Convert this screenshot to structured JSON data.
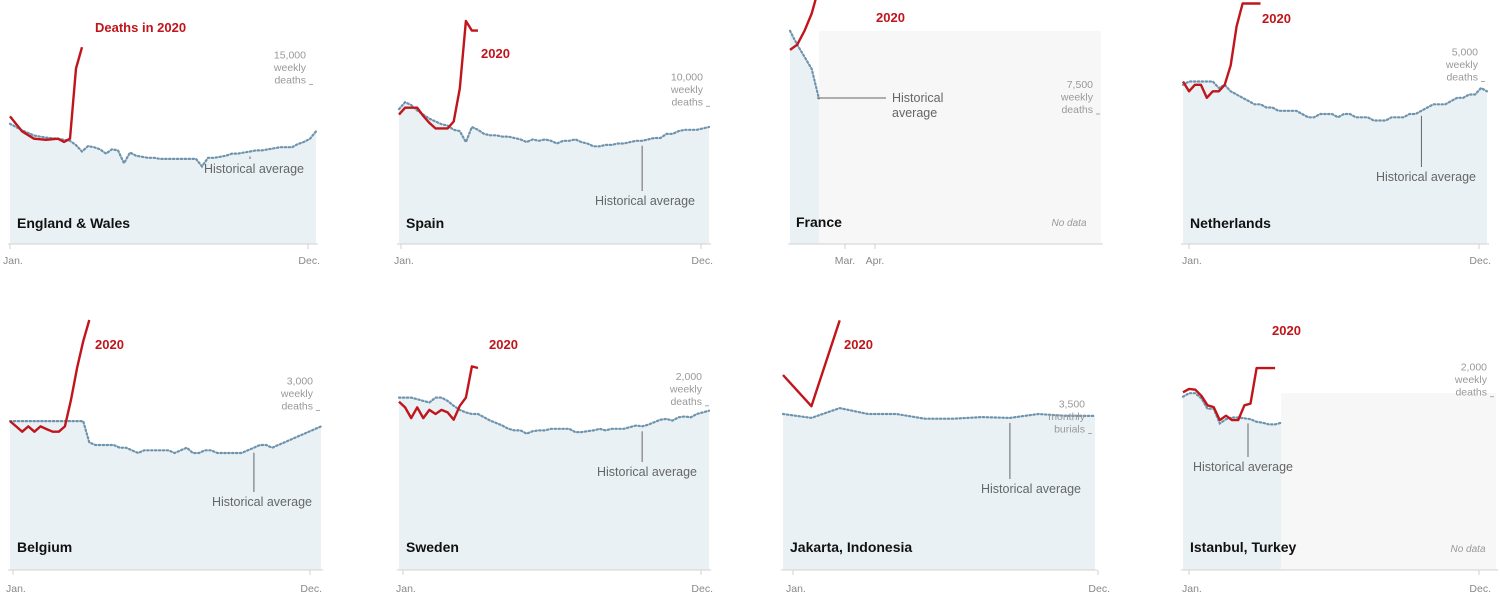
{
  "colors": {
    "deaths_2020": "#c0151b",
    "historical_average": "#6e93ad",
    "area_fill": "#e9f1f5",
    "no_data_fill": "#f7f7f7",
    "axis": "#d2d2d2",
    "annotation_line": "#666666"
  },
  "chart_data": [
    {
      "type": "line",
      "title": "England & Wales",
      "x_labels": [
        "Jan.",
        "Dec."
      ],
      "x_domain": [
        1,
        52
      ],
      "y_domain": [
        0,
        22000
      ],
      "scale_label": [
        "15,000",
        "weekly",
        "deaths"
      ],
      "scale_value": 15000,
      "series_label": "Deaths in 2020",
      "annotation": "Historical average",
      "annotation_week": 41,
      "series": [
        {
          "name": "Deaths in 2020",
          "x": [
            1,
            3,
            5,
            7,
            9,
            10,
            11,
            12,
            13
          ],
          "y": [
            12000,
            10600,
            9900,
            9800,
            9900,
            9600,
            9900,
            16500,
            18500
          ]
        },
        {
          "name": "Historical average",
          "x": [
            1,
            3,
            5,
            7,
            9,
            11,
            12,
            13,
            14,
            15,
            16,
            17,
            18,
            19,
            20,
            21,
            22,
            23,
            24,
            25,
            26,
            27,
            28,
            29,
            30,
            31,
            32,
            33,
            34,
            35,
            36,
            37,
            38,
            39,
            40,
            41,
            42,
            43,
            44,
            45,
            46,
            47,
            48,
            49,
            50,
            51,
            52
          ],
          "y": [
            11300,
            10700,
            10200,
            10000,
            9900,
            9700,
            9300,
            8700,
            9200,
            9100,
            8900,
            8500,
            8900,
            8800,
            7600,
            8600,
            8300,
            8200,
            8100,
            8100,
            8000,
            8000,
            8000,
            8000,
            8000,
            8000,
            8000,
            7300,
            8100,
            8100,
            8200,
            8300,
            8500,
            8500,
            8600,
            8700,
            8800,
            8800,
            8900,
            9000,
            9100,
            9100,
            9100,
            9400,
            9600,
            9900,
            10600
          ]
        }
      ]
    },
    {
      "type": "line",
      "title": "Spain",
      "x_labels": [
        "Jan.",
        "Dec."
      ],
      "x_domain": [
        1,
        52
      ],
      "y_domain": [
        0,
        17000
      ],
      "scale_label": [
        "10,000",
        "weekly",
        "deaths"
      ],
      "scale_value": 10000,
      "series_label": "2020",
      "annotation": "Historical average",
      "annotation_week": 41,
      "series": [
        {
          "name": "2020",
          "x": [
            1,
            2,
            3,
            4,
            5,
            6,
            7,
            8,
            9,
            10,
            11,
            12,
            13,
            14
          ],
          "y": [
            9400,
            9900,
            9900,
            9900,
            9300,
            8800,
            8400,
            8400,
            8400,
            8900,
            11300,
            16200,
            15500,
            15500
          ]
        },
        {
          "name": "Historical average",
          "x": [
            1,
            2,
            3,
            4,
            5,
            6,
            7,
            8,
            9,
            10,
            11,
            12,
            13,
            14,
            15,
            16,
            17,
            18,
            19,
            20,
            21,
            22,
            23,
            24,
            25,
            26,
            27,
            28,
            29,
            30,
            31,
            32,
            33,
            34,
            35,
            36,
            37,
            38,
            39,
            40,
            41,
            42,
            43,
            44,
            45,
            46,
            47,
            48,
            49,
            50,
            51,
            52
          ],
          "y": [
            9800,
            10300,
            10100,
            9700,
            9400,
            9100,
            8900,
            8700,
            8600,
            8300,
            8200,
            7400,
            8500,
            8300,
            8000,
            7900,
            7900,
            7800,
            7800,
            7700,
            7600,
            7400,
            7600,
            7500,
            7600,
            7500,
            7300,
            7500,
            7500,
            7600,
            7400,
            7300,
            7100,
            7100,
            7200,
            7200,
            7300,
            7300,
            7400,
            7500,
            7500,
            7600,
            7700,
            7700,
            8000,
            8000,
            8200,
            8300,
            8300,
            8300,
            8400,
            8500
          ]
        }
      ]
    },
    {
      "type": "line",
      "title": "France",
      "x_labels": [
        "Mar.",
        "Apr."
      ],
      "x_domain": [
        10,
        53
      ],
      "y_domain": [
        0,
        13500
      ],
      "scale_label": [
        "7,500",
        "weekly",
        "deaths"
      ],
      "scale_value": 7500,
      "series_label": "2020",
      "annotation": "Historical average",
      "annotation_week": 14,
      "no_data": "No data",
      "data_weeks": [
        10,
        14
      ],
      "series": [
        {
          "name": "2020",
          "x": [
            10,
            11,
            12,
            13,
            14
          ],
          "y": [
            11200,
            11500,
            12300,
            13300,
            14800
          ]
        },
        {
          "name": "Historical average",
          "x": [
            10,
            11,
            12,
            13,
            14
          ],
          "y": [
            12300,
            11500,
            10800,
            10100,
            8400
          ]
        }
      ]
    },
    {
      "type": "line",
      "title": "Netherlands",
      "x_labels": [
        "Jan.",
        "Dec."
      ],
      "x_domain": [
        1,
        52
      ],
      "y_domain": [
        0,
        7200
      ],
      "scale_label": [
        "5,000",
        "weekly",
        "deaths"
      ],
      "scale_value": 5000,
      "series_label": "2020",
      "annotation": "Historical average",
      "annotation_week": 41,
      "series": [
        {
          "name": "2020",
          "x": [
            1,
            2,
            3,
            4,
            5,
            6,
            7,
            8,
            9,
            10,
            11,
            12,
            13,
            14
          ],
          "y": [
            5000,
            4700,
            4900,
            4900,
            4500,
            4700,
            4700,
            4900,
            5500,
            6700,
            7400,
            7400,
            7400,
            7400
          ]
        },
        {
          "name": "Historical average",
          "x": [
            1,
            2,
            3,
            4,
            5,
            6,
            7,
            8,
            9,
            10,
            11,
            12,
            13,
            14,
            15,
            16,
            17,
            18,
            19,
            20,
            21,
            22,
            23,
            24,
            25,
            26,
            27,
            28,
            29,
            30,
            31,
            32,
            33,
            34,
            35,
            36,
            37,
            38,
            39,
            40,
            41,
            42,
            43,
            44,
            45,
            46,
            47,
            48,
            49,
            50,
            51,
            52
          ],
          "y": [
            4900,
            5000,
            5000,
            5000,
            5000,
            5000,
            4800,
            4900,
            4700,
            4600,
            4500,
            4400,
            4300,
            4300,
            4200,
            4200,
            4100,
            4100,
            4100,
            4100,
            4000,
            3900,
            3900,
            4000,
            4000,
            4000,
            3900,
            4000,
            4000,
            3900,
            3900,
            3900,
            3800,
            3800,
            3800,
            3900,
            3900,
            3900,
            4000,
            4000,
            4100,
            4200,
            4300,
            4300,
            4300,
            4400,
            4500,
            4500,
            4600,
            4600,
            4800,
            4700
          ]
        }
      ]
    },
    {
      "type": "line",
      "title": "Belgium",
      "x_labels": [
        "Jan.",
        "Dec."
      ],
      "x_domain": [
        1,
        52
      ],
      "y_domain": [
        0,
        4400
      ],
      "scale_label": [
        "3,000",
        "weekly",
        "deaths"
      ],
      "scale_value": 3000,
      "series_label": "2020",
      "annotation": "Historical average",
      "annotation_week": 41,
      "series": [
        {
          "name": "2020",
          "x": [
            1,
            2,
            3,
            4,
            5,
            6,
            7,
            8,
            9,
            10,
            11,
            12,
            13,
            14
          ],
          "y": [
            2800,
            2700,
            2600,
            2700,
            2600,
            2700,
            2650,
            2600,
            2600,
            2700,
            3200,
            3800,
            4300,
            4700
          ]
        },
        {
          "name": "Historical average",
          "x": [
            1,
            2,
            3,
            4,
            5,
            6,
            7,
            8,
            9,
            10,
            11,
            12,
            13,
            14,
            15,
            16,
            17,
            18,
            19,
            20,
            21,
            22,
            23,
            24,
            25,
            26,
            27,
            28,
            29,
            30,
            31,
            32,
            33,
            34,
            35,
            36,
            37,
            38,
            39,
            40,
            41,
            42,
            43,
            44,
            45,
            46,
            47,
            48,
            49,
            50,
            51,
            52
          ],
          "y": [
            2800,
            2800,
            2800,
            2800,
            2800,
            2800,
            2800,
            2800,
            2800,
            2800,
            2800,
            2800,
            2800,
            2400,
            2350,
            2350,
            2350,
            2350,
            2300,
            2300,
            2250,
            2200,
            2250,
            2250,
            2250,
            2250,
            2250,
            2200,
            2250,
            2300,
            2200,
            2200,
            2250,
            2250,
            2200,
            2200,
            2200,
            2200,
            2200,
            2250,
            2300,
            2350,
            2350,
            2300,
            2350,
            2400,
            2450,
            2500,
            2550,
            2600,
            2650,
            2700
          ]
        }
      ]
    },
    {
      "type": "line",
      "title": "Sweden",
      "x_labels": [
        "Jan.",
        "Dec."
      ],
      "x_domain": [
        1,
        52
      ],
      "y_domain": [
        0,
        2850
      ],
      "scale_label": [
        "2,000",
        "weekly",
        "deaths"
      ],
      "scale_value": 2000,
      "series_label": "2020",
      "annotation": "Historical average",
      "annotation_week": 41,
      "series": [
        {
          "name": "2020",
          "x": [
            1,
            2,
            3,
            4,
            5,
            6,
            7,
            8,
            9,
            10,
            11,
            12,
            13,
            14
          ],
          "y": [
            2050,
            1980,
            1850,
            1980,
            1850,
            1950,
            1900,
            1950,
            1920,
            1830,
            2000,
            2100,
            2480,
            2460
          ]
        },
        {
          "name": "Historical average",
          "x": [
            1,
            2,
            3,
            4,
            5,
            6,
            7,
            8,
            9,
            10,
            11,
            12,
            13,
            14,
            15,
            16,
            17,
            18,
            19,
            20,
            21,
            22,
            23,
            24,
            25,
            26,
            27,
            28,
            29,
            30,
            31,
            32,
            33,
            34,
            35,
            36,
            37,
            38,
            39,
            40,
            41,
            42,
            43,
            44,
            45,
            46,
            47,
            48,
            49,
            50,
            51,
            52
          ],
          "y": [
            2100,
            2100,
            2100,
            2080,
            2060,
            2040,
            2100,
            2100,
            2060,
            2000,
            1950,
            1920,
            1900,
            1900,
            1860,
            1820,
            1790,
            1760,
            1720,
            1700,
            1700,
            1660,
            1690,
            1700,
            1700,
            1720,
            1720,
            1720,
            1720,
            1680,
            1680,
            1690,
            1700,
            1720,
            1700,
            1720,
            1720,
            1720,
            1740,
            1760,
            1750,
            1770,
            1800,
            1830,
            1840,
            1820,
            1860,
            1870,
            1860,
            1900,
            1920,
            1940
          ]
        }
      ]
    },
    {
      "type": "line",
      "title": "Jakarta, Indonesia",
      "x_labels": [
        "Jan.",
        "Dec."
      ],
      "x_domain": [
        1,
        12
      ],
      "y_domain": [
        0,
        6000
      ],
      "scale_label": [
        "3,500",
        "monthly",
        "burials"
      ],
      "scale_value": 3500,
      "series_label": "2020",
      "annotation": "Historical average",
      "annotation_month": 9,
      "series": [
        {
          "name": "2020",
          "x": [
            1,
            2,
            3
          ],
          "y": [
            5000,
            4200,
            6400
          ]
        },
        {
          "name": "Historical average",
          "x": [
            1,
            2,
            3,
            4,
            5,
            6,
            7,
            8,
            9,
            10,
            11,
            12
          ],
          "y": [
            4000,
            3900,
            4150,
            4000,
            4000,
            3880,
            3880,
            3920,
            3900,
            4000,
            3950,
            3950
          ]
        }
      ]
    },
    {
      "type": "line",
      "title": "Istanbul, Turkey",
      "x_labels": [
        "Jan.",
        "Dec."
      ],
      "x_domain": [
        1,
        52
      ],
      "y_domain": [
        0,
        2700
      ],
      "scale_label": [
        "2,000",
        "weekly",
        "deaths"
      ],
      "scale_value": 2000,
      "series_label": "2020",
      "annotation": "Historical average",
      "annotation_week": 11,
      "no_data": "No data",
      "data_weeks": [
        1,
        17
      ],
      "series": [
        {
          "name": "2020",
          "x": [
            1,
            2,
            3,
            4,
            5,
            6,
            7,
            8,
            9,
            10,
            11,
            12,
            13,
            14,
            15,
            16
          ],
          "y": [
            2050,
            2090,
            2080,
            2010,
            1900,
            1880,
            1730,
            1780,
            1730,
            1730,
            1900,
            1920,
            2330,
            2330,
            2330,
            2330
          ]
        },
        {
          "name": "Historical average",
          "x": [
            1,
            2,
            3,
            4,
            5,
            6,
            7,
            8,
            9,
            10,
            11,
            12,
            13,
            14,
            15,
            16,
            17
          ],
          "y": [
            2000,
            2040,
            2040,
            1980,
            1860,
            1860,
            1690,
            1740,
            1760,
            1760,
            1750,
            1740,
            1710,
            1700,
            1680,
            1680,
            1700
          ]
        }
      ]
    }
  ]
}
